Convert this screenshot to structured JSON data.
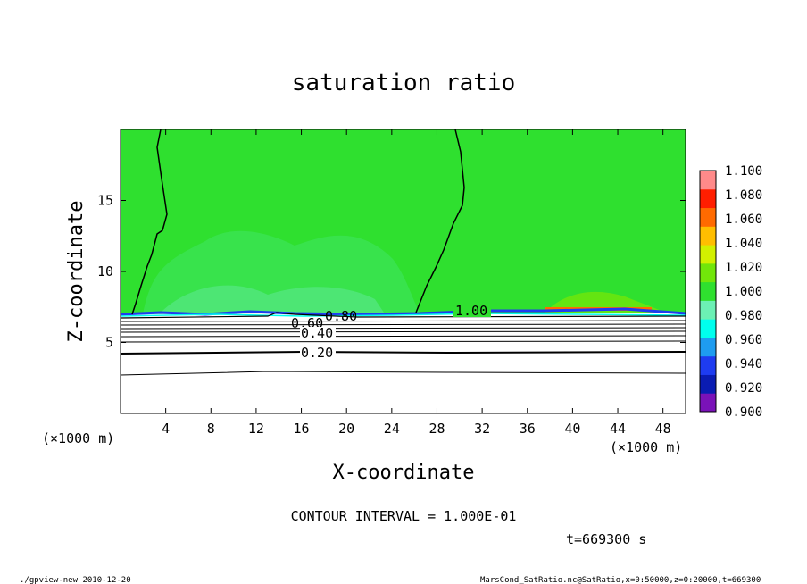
{
  "chart_data": {
    "type": "heatmap",
    "title": "saturation ratio",
    "xlabel": "X-coordinate",
    "ylabel": "Z-coordinate",
    "x_unit": "(×1000 m)",
    "y_unit": "(×1000 m)",
    "xlim": [
      0,
      50
    ],
    "ylim": [
      0,
      20
    ],
    "x_ticks": [
      4,
      8,
      12,
      16,
      20,
      24,
      28,
      32,
      36,
      40,
      44,
      48
    ],
    "y_ticks": [
      5,
      10,
      15
    ],
    "colorbar": {
      "levels": [
        "0.900",
        "0.920",
        "0.940",
        "0.960",
        "0.980",
        "1.000",
        "1.020",
        "1.040",
        "1.060",
        "1.080",
        "1.100"
      ],
      "colors": [
        "#7a12b8",
        "#0a1cb2",
        "#1e3cf0",
        "#1e9cf0",
        "#00ffee",
        "#6cf0b4",
        "#2fe02f",
        "#72e60a",
        "#d2f000",
        "#ffbe00",
        "#ff6a00",
        "#ff1e00",
        "#ff8a8a"
      ]
    },
    "contour_labels": [
      "0.20",
      "0.40",
      "0.60",
      "0.80",
      "1.00"
    ],
    "contour_interval_text": "CONTOUR INTERVAL = 1.000E-01",
    "time_text": "t=669300 s"
  },
  "footer": {
    "left": "./gpview-new  2010-12-20",
    "right": "MarsCond_SatRatio.nc@SatRatio,x=0:50000,z=0:20000,t=669300"
  }
}
